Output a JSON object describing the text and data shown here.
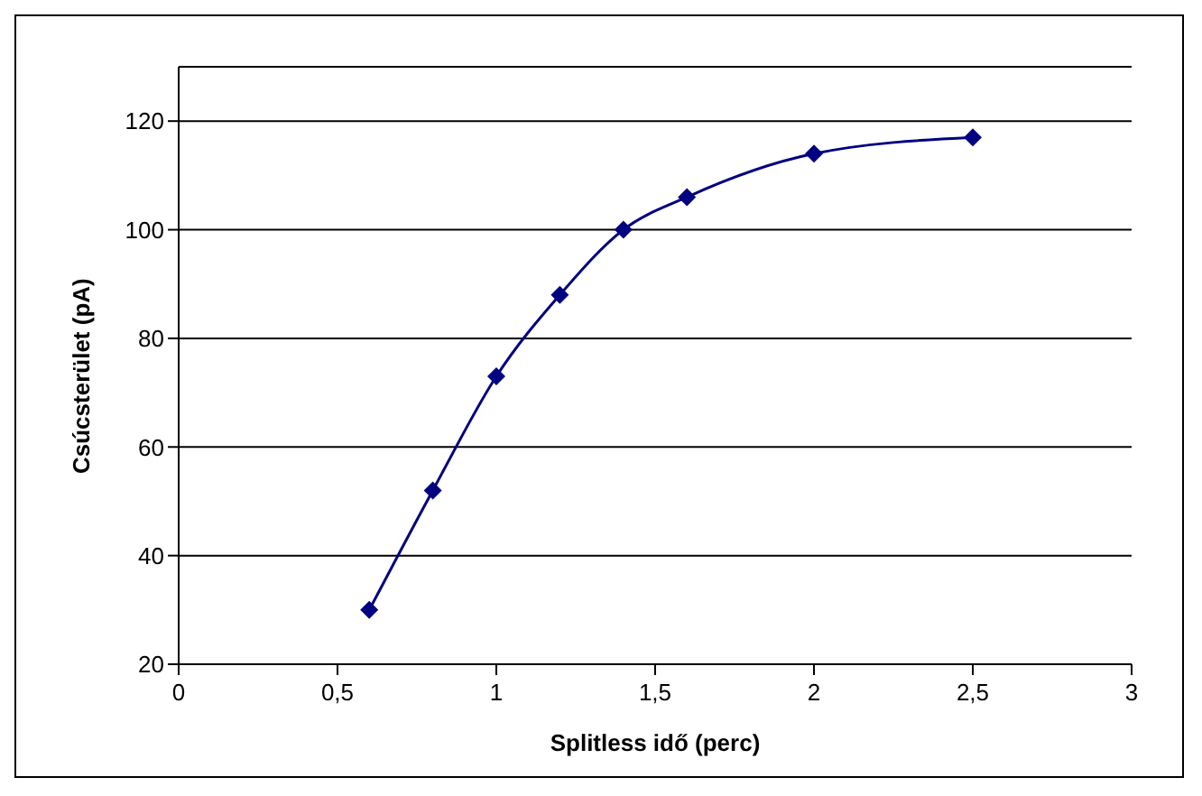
{
  "chart_data": {
    "type": "line",
    "xlabel": "Splitless idő (perc)",
    "ylabel": "Csúcsterület (pA)",
    "x": [
      0.6,
      0.8,
      1.0,
      1.2,
      1.4,
      1.6,
      2.0,
      2.5
    ],
    "series": [
      {
        "color": "#000080",
        "values": [
          30,
          52,
          73,
          88,
          100,
          106,
          114,
          117
        ]
      }
    ],
    "xlim": [
      0,
      3
    ],
    "xticks": [
      0,
      {
        "value": 0.5,
        "label": "0,5"
      },
      1,
      {
        "value": 1.5,
        "label": "1,5"
      },
      2,
      {
        "value": 2.5,
        "label": "2,5"
      },
      3
    ],
    "ylim": [
      20,
      130
    ],
    "yticks": [
      20,
      40,
      60,
      80,
      100,
      120
    ],
    "grid": "y",
    "marker": "diamond",
    "line_style": "solid"
  }
}
